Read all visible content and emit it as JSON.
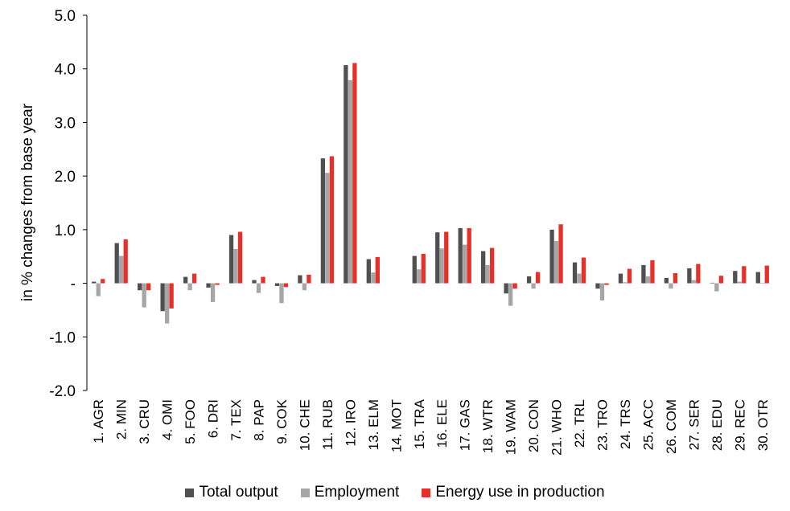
{
  "chart_data": {
    "type": "bar",
    "ylabel": "in % changes from base year",
    "ylim": [
      -2.0,
      5.0
    ],
    "yticks": [
      5.0,
      4.0,
      3.0,
      2.0,
      1.0,
      0,
      -1.0,
      -2.0
    ],
    "ytick_labels": [
      "5.0",
      "4.0",
      "3.0",
      "2.0",
      "1.0",
      "-",
      "-1.0",
      "-2.0"
    ],
    "grid": false,
    "legend_position": "bottom",
    "categories": [
      "1. AGR",
      "2. MIN",
      "3. CRU",
      "4. OMI",
      "5. FOO",
      "6. DRI",
      "7. TEX",
      "8. PAP",
      "9. COK",
      "10. CHE",
      "11. RUB",
      "12. IRO",
      "13. ELM",
      "14. MOT",
      "15. TRA",
      "16. ELE",
      "17. GAS",
      "18. WTR",
      "19. WAM",
      "20. CON",
      "21. WHO",
      "22. TRL",
      "23. TRO",
      "24. TRS",
      "25. ACC",
      "26. COM",
      "27. SER",
      "28. EDU",
      "29. REC",
      "30. OTR"
    ],
    "series": [
      {
        "name": "Total output",
        "color": "#505050",
        "values": [
          0.03,
          0.75,
          -0.13,
          -0.52,
          0.12,
          -0.08,
          0.9,
          0.06,
          -0.05,
          0.15,
          2.33,
          4.07,
          0.45,
          0.0,
          0.51,
          0.95,
          1.03,
          0.6,
          -0.19,
          0.13,
          1.0,
          0.39,
          -0.1,
          0.18,
          0.34,
          0.1,
          0.28,
          0.01,
          0.23,
          0.21
        ]
      },
      {
        "name": "Employment",
        "color": "#a6a6a6",
        "values": [
          -0.24,
          0.51,
          -0.45,
          -0.75,
          -0.13,
          -0.35,
          0.64,
          -0.18,
          -0.37,
          -0.13,
          2.06,
          3.79,
          0.2,
          0.0,
          0.26,
          0.65,
          0.72,
          0.34,
          -0.42,
          -0.1,
          0.79,
          0.18,
          -0.32,
          0.02,
          0.13,
          -0.1,
          0.06,
          -0.15,
          0.03,
          0.01
        ]
      },
      {
        "name": "Energy use in production",
        "color": "#e8302a",
        "values": [
          0.08,
          0.82,
          -0.13,
          -0.47,
          0.18,
          -0.03,
          0.96,
          0.12,
          -0.07,
          0.16,
          2.37,
          4.11,
          0.49,
          0.0,
          0.55,
          0.96,
          1.03,
          0.66,
          -0.1,
          0.21,
          1.1,
          0.48,
          -0.03,
          0.27,
          0.43,
          0.19,
          0.36,
          0.14,
          0.32,
          0.33
        ]
      }
    ]
  }
}
